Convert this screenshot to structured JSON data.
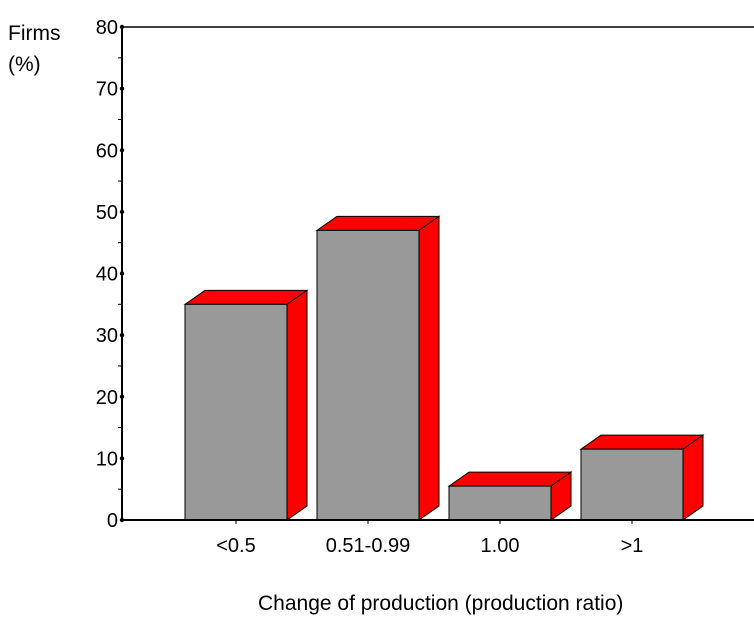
{
  "chart_data": {
    "type": "bar",
    "title": "",
    "ylabel_line1": "Firms",
    "ylabel_line2": "(%)",
    "xlabel": "Change of production (production ratio)",
    "categories": [
      "<0.5",
      "0.51-0.99",
      "1.00",
      ">1"
    ],
    "values": [
      35,
      47,
      5.5,
      11.5
    ],
    "ylim": [
      0,
      80
    ],
    "yticks": [
      0,
      10,
      20,
      30,
      40,
      50,
      60,
      70,
      80
    ],
    "ytick_labels": [
      "0",
      "10",
      "20",
      "30",
      "40",
      "50",
      "60",
      "70",
      "80"
    ],
    "grid": false,
    "legend": "none",
    "bar_front_color": "#999999",
    "bar_3d_color": "#ff0000"
  }
}
